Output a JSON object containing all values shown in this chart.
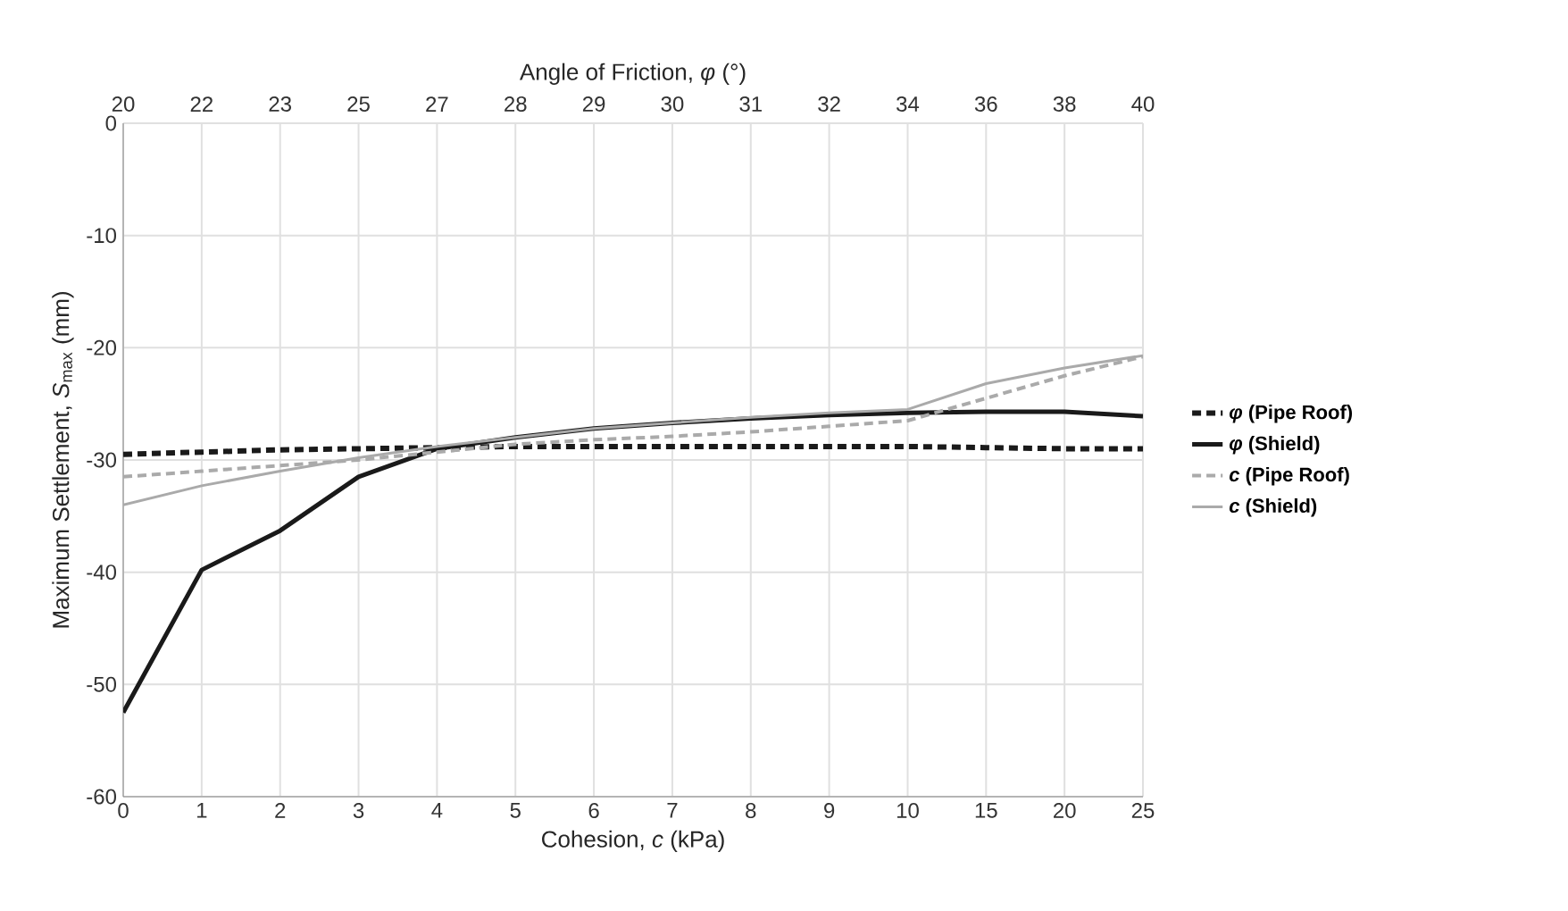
{
  "chart_data": {
    "type": "line",
    "xlabel": "Cohesion, *c* (kPa)",
    "x2label": "Angle of Friction, *φ*  (°)",
    "ylabel": "Maximum Settlement, *S*$_{max}$ (mm)",
    "categories": [
      "0",
      "1",
      "2",
      "3",
      "4",
      "5",
      "6",
      "7",
      "8",
      "9",
      "10",
      "15",
      "20",
      "25"
    ],
    "annotations": [
      "20",
      "22",
      "23",
      "25",
      "27",
      "28",
      "29",
      "30",
      "31",
      "32",
      "34",
      "36",
      "38",
      "40"
    ],
    "ylim": [
      -60,
      0
    ],
    "yticks": [
      -60,
      -50,
      -40,
      -30,
      -20,
      -10,
      0
    ],
    "grid": true,
    "legend": "right",
    "marker": "none",
    "series": [
      {
        "name": "*φ* (Pipe Roof)",
        "color": "#1a1a1a",
        "line_style": "dashed",
        "values": [
          -29.5,
          -29.3,
          -29.1,
          -29,
          -28.9,
          -28.8,
          -28.8,
          -28.8,
          -28.8,
          -28.8,
          -28.8,
          -28.9,
          -29,
          -29
        ]
      },
      {
        "name": "*φ* (Shield)",
        "color": "#1a1a1a",
        "line_style": "solid",
        "values": [
          -52.5,
          -39.8,
          -36.3,
          -31.5,
          -29,
          -28,
          -27.2,
          -26.7,
          -26.3,
          -26,
          -25.8,
          -25.7,
          -25.7,
          -26.1
        ]
      },
      {
        "name": "*c* (Pipe Roof)",
        "color": "#aaaaaa",
        "line_style": "dashed",
        "values": [
          -31.5,
          -31,
          -30.5,
          -30,
          -29.3,
          -28.6,
          -28.2,
          -27.9,
          -27.5,
          -27,
          -26.5,
          -24.5,
          -22.5,
          -20.8
        ]
      },
      {
        "name": "*c* (Shield)",
        "color": "#aaaaaa",
        "line_style": "solid",
        "values": [
          -34,
          -32.3,
          -31,
          -29.8,
          -28.8,
          -28,
          -27.2,
          -26.7,
          -26.2,
          -25.8,
          -25.5,
          -23.2,
          -21.8,
          -20.7
        ]
      }
    ]
  }
}
